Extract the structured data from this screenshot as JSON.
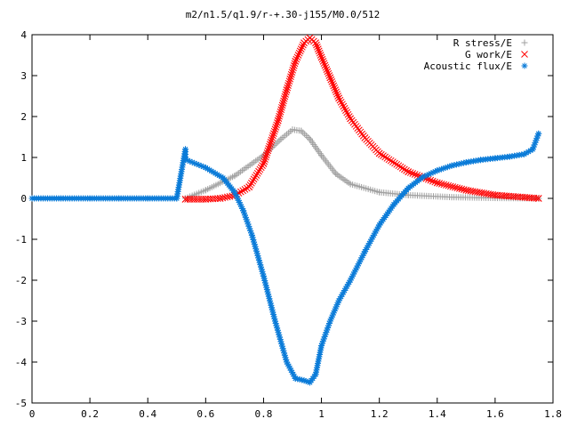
{
  "chart_data": {
    "type": "scatter",
    "title": "m2/n1.5/q1.9/r-+.30-j155/M0.0/512",
    "xlabel": "",
    "ylabel": "",
    "xlim": [
      0,
      1.8
    ],
    "ylim": [
      -5,
      4
    ],
    "grid": false,
    "legend_position": "top-right",
    "xticks": [
      "0",
      "0.2",
      "0.4",
      "0.6",
      "0.8",
      "1",
      "1.2",
      "1.4",
      "1.6",
      "1.8"
    ],
    "yticks": [
      "4",
      "3",
      "2",
      "1",
      "0",
      "-1",
      "-2",
      "-3",
      "-4",
      "-5"
    ],
    "series": [
      {
        "name": "R stress/E",
        "marker": "plus",
        "color": "#a0a0a0",
        "x": [
          0.53,
          0.6,
          0.7,
          0.8,
          0.86,
          0.9,
          0.93,
          0.96,
          1.0,
          1.05,
          1.1,
          1.2,
          1.3,
          1.45,
          1.6,
          1.75
        ],
        "y": [
          0.0,
          0.2,
          0.55,
          1.05,
          1.45,
          1.68,
          1.65,
          1.45,
          1.05,
          0.6,
          0.35,
          0.15,
          0.08,
          0.03,
          0.01,
          0.0
        ]
      },
      {
        "name": "G work/E",
        "marker": "cross",
        "color": "#ff0000",
        "x": [
          0.53,
          0.6,
          0.65,
          0.7,
          0.75,
          0.8,
          0.85,
          0.88,
          0.91,
          0.94,
          0.96,
          0.98,
          1.0,
          1.03,
          1.06,
          1.1,
          1.15,
          1.2,
          1.3,
          1.4,
          1.5,
          1.6,
          1.75
        ],
        "y": [
          -0.02,
          -0.02,
          0.0,
          0.07,
          0.28,
          0.85,
          1.9,
          2.65,
          3.35,
          3.8,
          3.92,
          3.8,
          3.45,
          2.95,
          2.45,
          1.95,
          1.48,
          1.1,
          0.65,
          0.38,
          0.2,
          0.08,
          0.0
        ]
      },
      {
        "name": "Acoustic flux/E",
        "marker": "star",
        "color": "#0a7bd8",
        "x": [
          0.0,
          0.1,
          0.2,
          0.3,
          0.4,
          0.5,
          0.53,
          0.53,
          0.6,
          0.66,
          0.7,
          0.73,
          0.76,
          0.8,
          0.84,
          0.88,
          0.91,
          0.94,
          0.96,
          0.98,
          1.0,
          1.03,
          1.06,
          1.1,
          1.15,
          1.2,
          1.25,
          1.3,
          1.35,
          1.4,
          1.45,
          1.5,
          1.55,
          1.6,
          1.65,
          1.7,
          1.73,
          1.75
        ],
        "y": [
          0.0,
          0.0,
          0.0,
          0.0,
          0.0,
          0.0,
          1.2,
          0.95,
          0.75,
          0.5,
          0.15,
          -0.3,
          -0.9,
          -1.9,
          -3.0,
          -4.0,
          -4.4,
          -4.45,
          -4.5,
          -4.3,
          -3.6,
          -3.0,
          -2.5,
          -2.0,
          -1.3,
          -0.65,
          -0.15,
          0.25,
          0.52,
          0.68,
          0.8,
          0.88,
          0.94,
          0.98,
          1.02,
          1.08,
          1.2,
          1.58
        ]
      }
    ]
  }
}
